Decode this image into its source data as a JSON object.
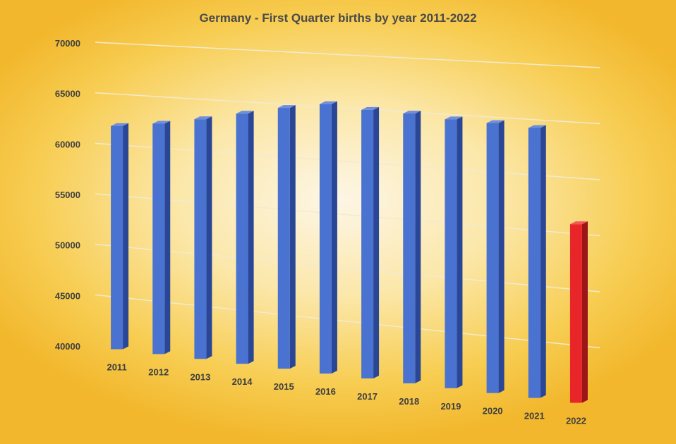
{
  "chart_data": {
    "type": "bar",
    "title": "Germany - First Quarter births by year 2011-2022",
    "xlabel": "",
    "ylabel": "",
    "ylim": [
      40000,
      70000
    ],
    "y_ticks": [
      40000,
      45000,
      50000,
      55000,
      60000,
      65000,
      70000
    ],
    "categories": [
      "2011",
      "2012",
      "2013",
      "2014",
      "2015",
      "2016",
      "2017",
      "2018",
      "2019",
      "2020",
      "2021",
      "2022"
    ],
    "values": [
      62000,
      62500,
      63200,
      64000,
      64800,
      65400,
      65100,
      65000,
      64700,
      64600,
      64400,
      56000
    ],
    "grid": true,
    "legend": "none",
    "colors": {
      "bar": "#4a72d1",
      "bar_side": "#2a4696",
      "bar_top": "#6f8fdd",
      "highlight": "#e8262a",
      "highlight_side": "#9c1518",
      "highlight_top": "#f0595b",
      "gridline": "#f3ead0"
    },
    "highlight_index": 11
  }
}
